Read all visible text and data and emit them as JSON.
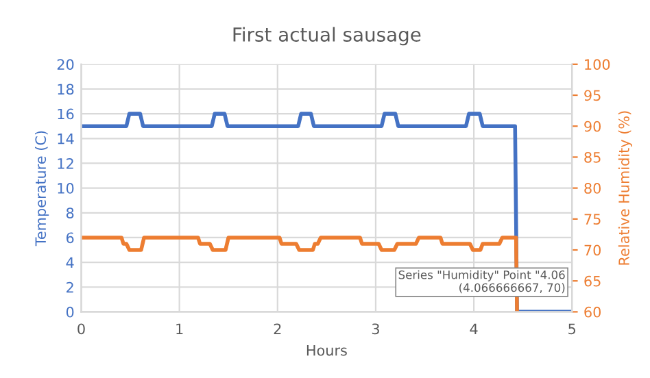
{
  "chart_data": {
    "type": "line",
    "title": "First actual sausage",
    "xlabel": "Hours",
    "ylabel": "Temperature (C)",
    "y2label": "Relative Humidity (%)",
    "series": [
      {
        "color": "#4472c4",
        "x": [
          0,
          0.46,
          0.49,
          0.6,
          0.63,
          1.33,
          1.36,
          1.46,
          1.49,
          2.21,
          2.24,
          2.34,
          2.37,
          3.06,
          3.09,
          3.2,
          3.23,
          3.92,
          3.95,
          4.06,
          4.09,
          4.42,
          4.44,
          5
        ],
        "values": [
          15,
          15,
          16,
          16,
          15,
          15,
          16,
          16,
          15,
          15,
          16,
          16,
          15,
          15,
          16,
          16,
          15,
          15,
          16,
          16,
          15,
          15,
          0,
          0
        ]
      },
      {
        "axis": "y2",
        "color": "#ed7d31",
        "x": [
          0,
          0.41,
          0.43,
          0.46,
          0.49,
          0.61,
          0.64,
          1.19,
          1.21,
          1.31,
          1.34,
          1.47,
          1.5,
          2.02,
          2.04,
          2.19,
          2.22,
          2.36,
          2.38,
          2.41,
          2.44,
          2.84,
          2.86,
          3.03,
          3.06,
          3.19,
          3.22,
          3.41,
          3.44,
          3.66,
          3.68,
          3.96,
          3.99,
          4.066666667,
          4.09,
          4.26,
          4.29,
          4.43,
          4.44
        ],
        "values": [
          72,
          72,
          71,
          71,
          70,
          70,
          72,
          72,
          71,
          71,
          70,
          70,
          72,
          72,
          71,
          71,
          70,
          70,
          71,
          71,
          72,
          72,
          71,
          71,
          70,
          70,
          71,
          71,
          72,
          72,
          71,
          71,
          70,
          70,
          71,
          71,
          72,
          72,
          60
        ]
      }
    ],
    "xlim": [
      0,
      5
    ],
    "xticks": [
      0,
      1,
      2,
      3,
      4,
      5
    ],
    "ylim": [
      0,
      20
    ],
    "yticks": [
      0,
      2,
      4,
      6,
      8,
      10,
      12,
      14,
      16,
      18,
      20
    ],
    "y2lim": [
      60,
      100
    ],
    "y2ticks": [
      60,
      65,
      70,
      75,
      80,
      85,
      90,
      95,
      100
    ],
    "grid": true,
    "annotations": [
      "Series \"Humidity\" Point \"4.06\n(4.066666667, 70)"
    ]
  }
}
